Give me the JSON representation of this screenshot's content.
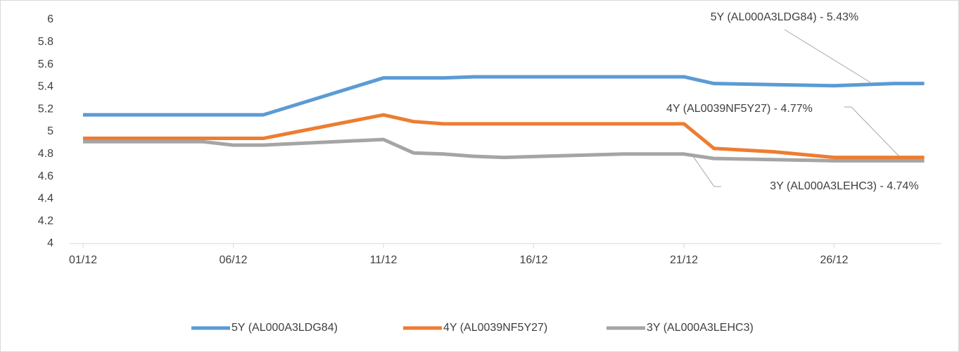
{
  "chart_data": {
    "type": "line",
    "x": [
      "01/12",
      "05/12",
      "06/12",
      "07/12",
      "11/12",
      "12/12",
      "13/12",
      "14/12",
      "15/12",
      "19/12",
      "21/12",
      "22/12",
      "24/12",
      "26/12",
      "28/12",
      "29/12"
    ],
    "series": [
      {
        "name": "5Y (AL000A3LDG84)",
        "color": "#5b9bd5",
        "values": [
          5.15,
          5.15,
          5.15,
          5.15,
          5.48,
          5.48,
          5.48,
          5.49,
          5.49,
          5.49,
          5.49,
          5.43,
          5.42,
          5.41,
          5.43,
          5.43
        ]
      },
      {
        "name": "4Y (AL0039NF5Y27)",
        "color": "#ed7d31",
        "values": [
          4.94,
          4.94,
          4.94,
          4.94,
          5.15,
          5.09,
          5.07,
          5.07,
          5.07,
          5.07,
          5.07,
          4.85,
          4.82,
          4.77,
          4.77,
          4.77
        ]
      },
      {
        "name": "3Y (AL000A3LEHC3)",
        "color": "#a5a5a5",
        "values": [
          4.91,
          4.91,
          4.88,
          4.88,
          4.93,
          4.81,
          4.8,
          4.78,
          4.77,
          4.8,
          4.8,
          4.76,
          4.75,
          4.74,
          4.74,
          4.74
        ]
      }
    ],
    "xticks": [
      "01/12",
      "06/12",
      "11/12",
      "16/12",
      "21/12",
      "26/12"
    ],
    "ylim": [
      4,
      6
    ],
    "yticks": [
      4,
      4.2,
      4.4,
      4.6,
      4.8,
      5,
      5.2,
      5.4,
      5.6,
      5.8,
      6
    ],
    "grid": false,
    "legend": "bottom",
    "annotations": [
      "5Y (AL000A3LDG84) - 5.43%",
      "4Y (AL0039NF5Y27) - 4.77%",
      "3Y (AL000A3LEHC3) - 4.74%"
    ]
  }
}
